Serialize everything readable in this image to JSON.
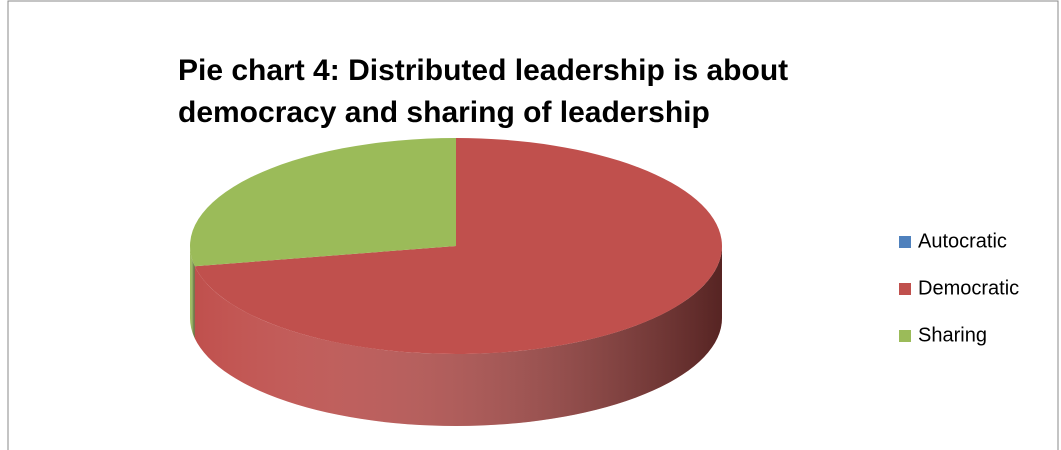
{
  "chart_data": {
    "type": "pie",
    "title": "Pie chart 4: Distributed leadership is about democracy and sharing of leadership",
    "categories": [
      "Autocratic",
      "Democratic",
      "Sharing"
    ],
    "values": [
      0,
      72,
      28
    ],
    "colors": [
      "#4f81bd",
      "#c0504d",
      "#9bbb59"
    ],
    "legend": "right"
  }
}
